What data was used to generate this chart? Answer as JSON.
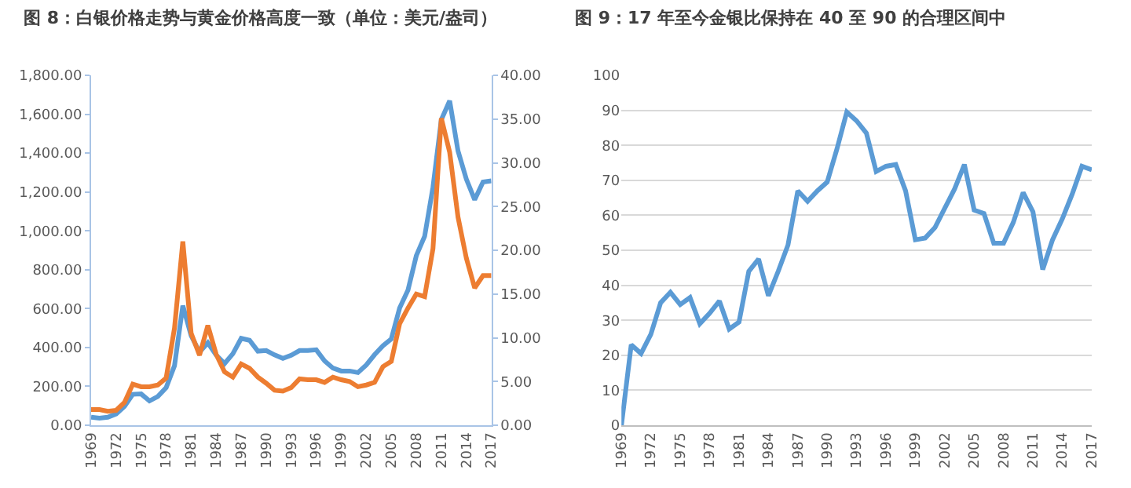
{
  "chart_data": [
    {
      "type": "line",
      "title": "图 8：白银价格走势与黄金价格高度一致（单位：美元/盎司）",
      "x": [
        1969,
        1970,
        1971,
        1972,
        1973,
        1974,
        1975,
        1976,
        1977,
        1978,
        1979,
        1980,
        1981,
        1982,
        1983,
        1984,
        1985,
        1986,
        1987,
        1988,
        1989,
        1990,
        1991,
        1992,
        1993,
        1994,
        1995,
        1996,
        1997,
        1998,
        1999,
        2000,
        2001,
        2002,
        2003,
        2004,
        2005,
        2006,
        2007,
        2008,
        2009,
        2010,
        2011,
        2012,
        2013,
        2014,
        2015,
        2016,
        2017
      ],
      "series": [
        {
          "color": "#5b9bd5",
          "values": [
            41,
            36,
            41,
            58,
            97,
            159,
            161,
            125,
            148,
            193,
            306,
            615,
            460,
            376,
            424,
            361,
            317,
            368,
            447,
            437,
            381,
            384,
            362,
            344,
            360,
            384,
            384,
            388,
            331,
            294,
            279,
            279,
            271,
            310,
            363,
            409,
            444,
            603,
            695,
            872,
            972,
            1225,
            1572,
            1669,
            1411,
            1266,
            1160,
            1251,
            1257
          ]
        },
        {
          "color": "#ed7d31",
          "axis": "y2",
          "values": [
            1.8,
            1.8,
            1.6,
            1.7,
            2.6,
            4.7,
            4.4,
            4.4,
            4.6,
            5.4,
            11.1,
            21.0,
            10.5,
            8.0,
            11.4,
            8.1,
            6.1,
            5.5,
            7.0,
            6.5,
            5.5,
            4.8,
            4.0,
            3.9,
            4.3,
            5.3,
            5.2,
            5.2,
            4.9,
            5.5,
            5.2,
            5.0,
            4.4,
            4.6,
            4.9,
            6.7,
            7.3,
            11.6,
            13.4,
            15.0,
            14.7,
            20.2,
            35.1,
            31.2,
            23.8,
            19.1,
            15.7,
            17.1,
            17.1
          ]
        }
      ],
      "xlim": [
        1969,
        2017
      ],
      "xticks": [
        1969,
        1972,
        1975,
        1978,
        1981,
        1984,
        1987,
        1990,
        1993,
        1996,
        1999,
        2002,
        2005,
        2008,
        2011,
        2014,
        2017
      ],
      "ylim": [
        0,
        1800
      ],
      "yticks": [
        {
          "value": 0,
          "label": "0.00"
        },
        {
          "value": 200,
          "label": "200.00"
        },
        {
          "value": 400,
          "label": "400.00"
        },
        {
          "value": 600,
          "label": "600.00"
        },
        {
          "value": 800,
          "label": "800.00"
        },
        {
          "value": 1000,
          "label": "1,000.00"
        },
        {
          "value": 1200,
          "label": "1,200.00"
        },
        {
          "value": 1400,
          "label": "1,400.00"
        },
        {
          "value": 1600,
          "label": "1,600.00"
        },
        {
          "value": 1800,
          "label": "1,800.00"
        }
      ],
      "y2lim": [
        0,
        40
      ],
      "y2ticks": [
        {
          "value": 0,
          "label": "0.00"
        },
        {
          "value": 5,
          "label": "5.00"
        },
        {
          "value": 10,
          "label": "10.00"
        },
        {
          "value": 15,
          "label": "15.00"
        },
        {
          "value": 20,
          "label": "20.00"
        },
        {
          "value": 25,
          "label": "25.00"
        },
        {
          "value": 30,
          "label": "30.00"
        },
        {
          "value": 35,
          "label": "35.00"
        },
        {
          "value": 40,
          "label": "40.00"
        }
      ]
    },
    {
      "type": "line",
      "title": "图 9：17 年至今金银比保持在 40 至 90 的合理区间中",
      "x": [
        1969,
        1970,
        1971,
        1972,
        1973,
        1974,
        1975,
        1976,
        1977,
        1978,
        1979,
        1980,
        1981,
        1982,
        1983,
        1984,
        1985,
        1986,
        1987,
        1988,
        1989,
        1990,
        1991,
        1992,
        1993,
        1994,
        1995,
        1996,
        1997,
        1998,
        1999,
        2000,
        2001,
        2002,
        2003,
        2004,
        2005,
        2006,
        2007,
        2008,
        2009,
        2010,
        2011,
        2012,
        2013,
        2014,
        2015,
        2016,
        2017
      ],
      "series": [
        {
          "color": "#5b9bd5",
          "values": [
            0,
            23,
            20.5,
            26,
            35,
            38,
            34.5,
            36.5,
            29,
            32,
            35.5,
            27.5,
            29.5,
            44,
            47.5,
            37,
            44,
            51.5,
            67,
            64,
            67,
            69.5,
            79,
            89.5,
            87,
            83.5,
            72.5,
            74,
            74.5,
            67,
            53,
            53.5,
            56.5,
            62,
            67.5,
            74.5,
            61.5,
            60.5,
            52,
            52,
            58,
            66.5,
            61,
            44.5,
            53,
            59,
            66,
            74,
            73
          ]
        }
      ],
      "xlim": [
        1969,
        2017
      ],
      "xticks": [
        1969,
        1972,
        1975,
        1978,
        1981,
        1984,
        1987,
        1990,
        1993,
        1996,
        1999,
        2002,
        2005,
        2008,
        2011,
        2014,
        2017
      ],
      "ylim": [
        0,
        100
      ],
      "yticks": [
        0,
        10,
        20,
        30,
        40,
        50,
        60,
        70,
        80,
        90,
        100
      ],
      "grid": "y"
    }
  ]
}
